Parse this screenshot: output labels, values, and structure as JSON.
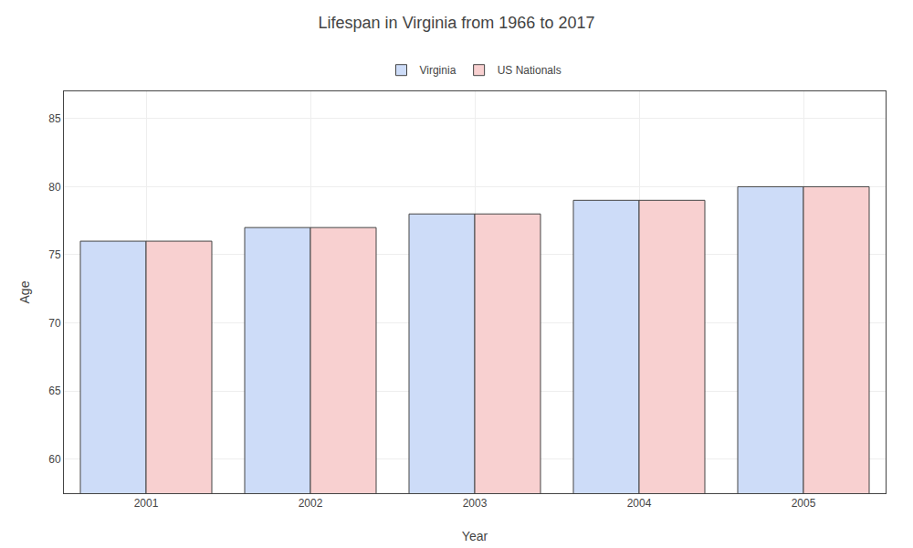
{
  "chart_data": {
    "type": "bar",
    "title": "Lifespan in Virginia from 1966 to 2017",
    "xlabel": "Year",
    "ylabel": "Age",
    "categories": [
      "2001",
      "2002",
      "2003",
      "2004",
      "2005"
    ],
    "series": [
      {
        "name": "Virginia",
        "color": "#cddcf8",
        "values": [
          76.0,
          77.0,
          78.0,
          79.0,
          80.0
        ]
      },
      {
        "name": "US Nationals",
        "color": "#f8d0d0",
        "values": [
          76.0,
          77.0,
          78.0,
          79.0,
          80.0
        ]
      }
    ],
    "ylim": [
      57.5,
      87
    ],
    "yticks": [
      60,
      65,
      70,
      75,
      80,
      85
    ],
    "grid": true,
    "legend": "top"
  }
}
